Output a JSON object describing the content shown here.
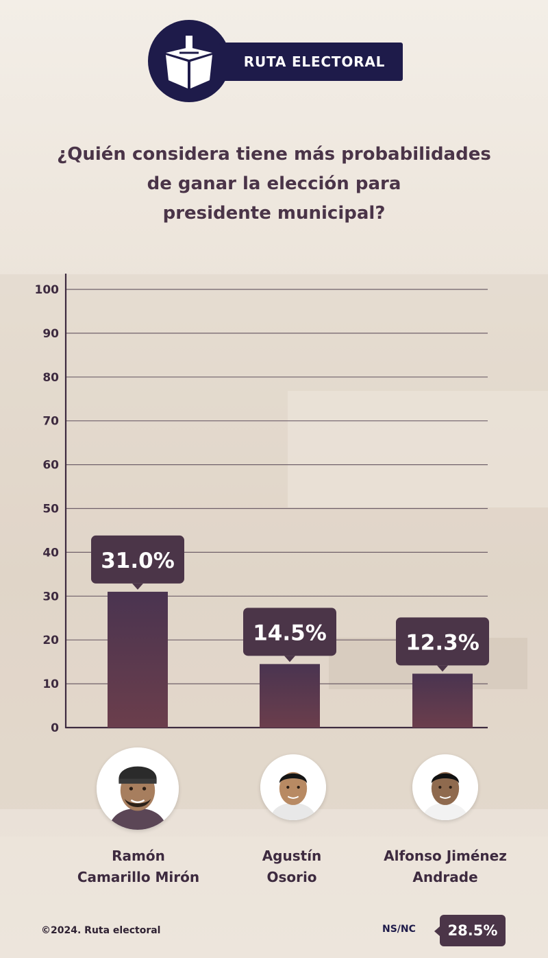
{
  "header": {
    "brand": "RUTA ELECTORAL"
  },
  "question": {
    "line1": "¿Quién considera tiene más probabilidades",
    "line2": "de ganar la elección para",
    "line3": "presidente municipal?"
  },
  "colors": {
    "brand_navy": "#1e1b4a",
    "bar_top": "#4a3450",
    "bar_bottom": "#6b3e4c",
    "label_box": "#4b3548",
    "text": "#3d2a3f"
  },
  "chart_data": {
    "type": "bar",
    "title": "¿Quién considera tiene más probabilidades de ganar la elección para presidente municipal?",
    "categories": [
      "Ramón Camarillo Mirón",
      "Agustín Osorio",
      "Alfonso Jiménez Andrade"
    ],
    "values": [
      31.0,
      14.5,
      12.3
    ],
    "value_labels": [
      "31.0%",
      "14.5%",
      "12.3%"
    ],
    "ylim": [
      0,
      100
    ],
    "yticks": [
      0,
      10,
      20,
      30,
      40,
      50,
      60,
      70,
      80,
      90,
      100
    ],
    "grid": true,
    "xlabel": "",
    "ylabel": ""
  },
  "candidates": [
    {
      "name_line1": "Ramón",
      "name_line2": "Camarillo Mirón",
      "photo": "candidate-photo"
    },
    {
      "name_line1": "Agustín",
      "name_line2": "Osorio",
      "photo": "candidate-photo"
    },
    {
      "name_line1": "Alfonso Jiménez",
      "name_line2": "Andrade",
      "photo": "candidate-photo"
    }
  ],
  "footer": {
    "copyright": "©2024. Ruta electoral",
    "nsnc_label": "NS/NC",
    "nsnc_value": "28.5%"
  }
}
